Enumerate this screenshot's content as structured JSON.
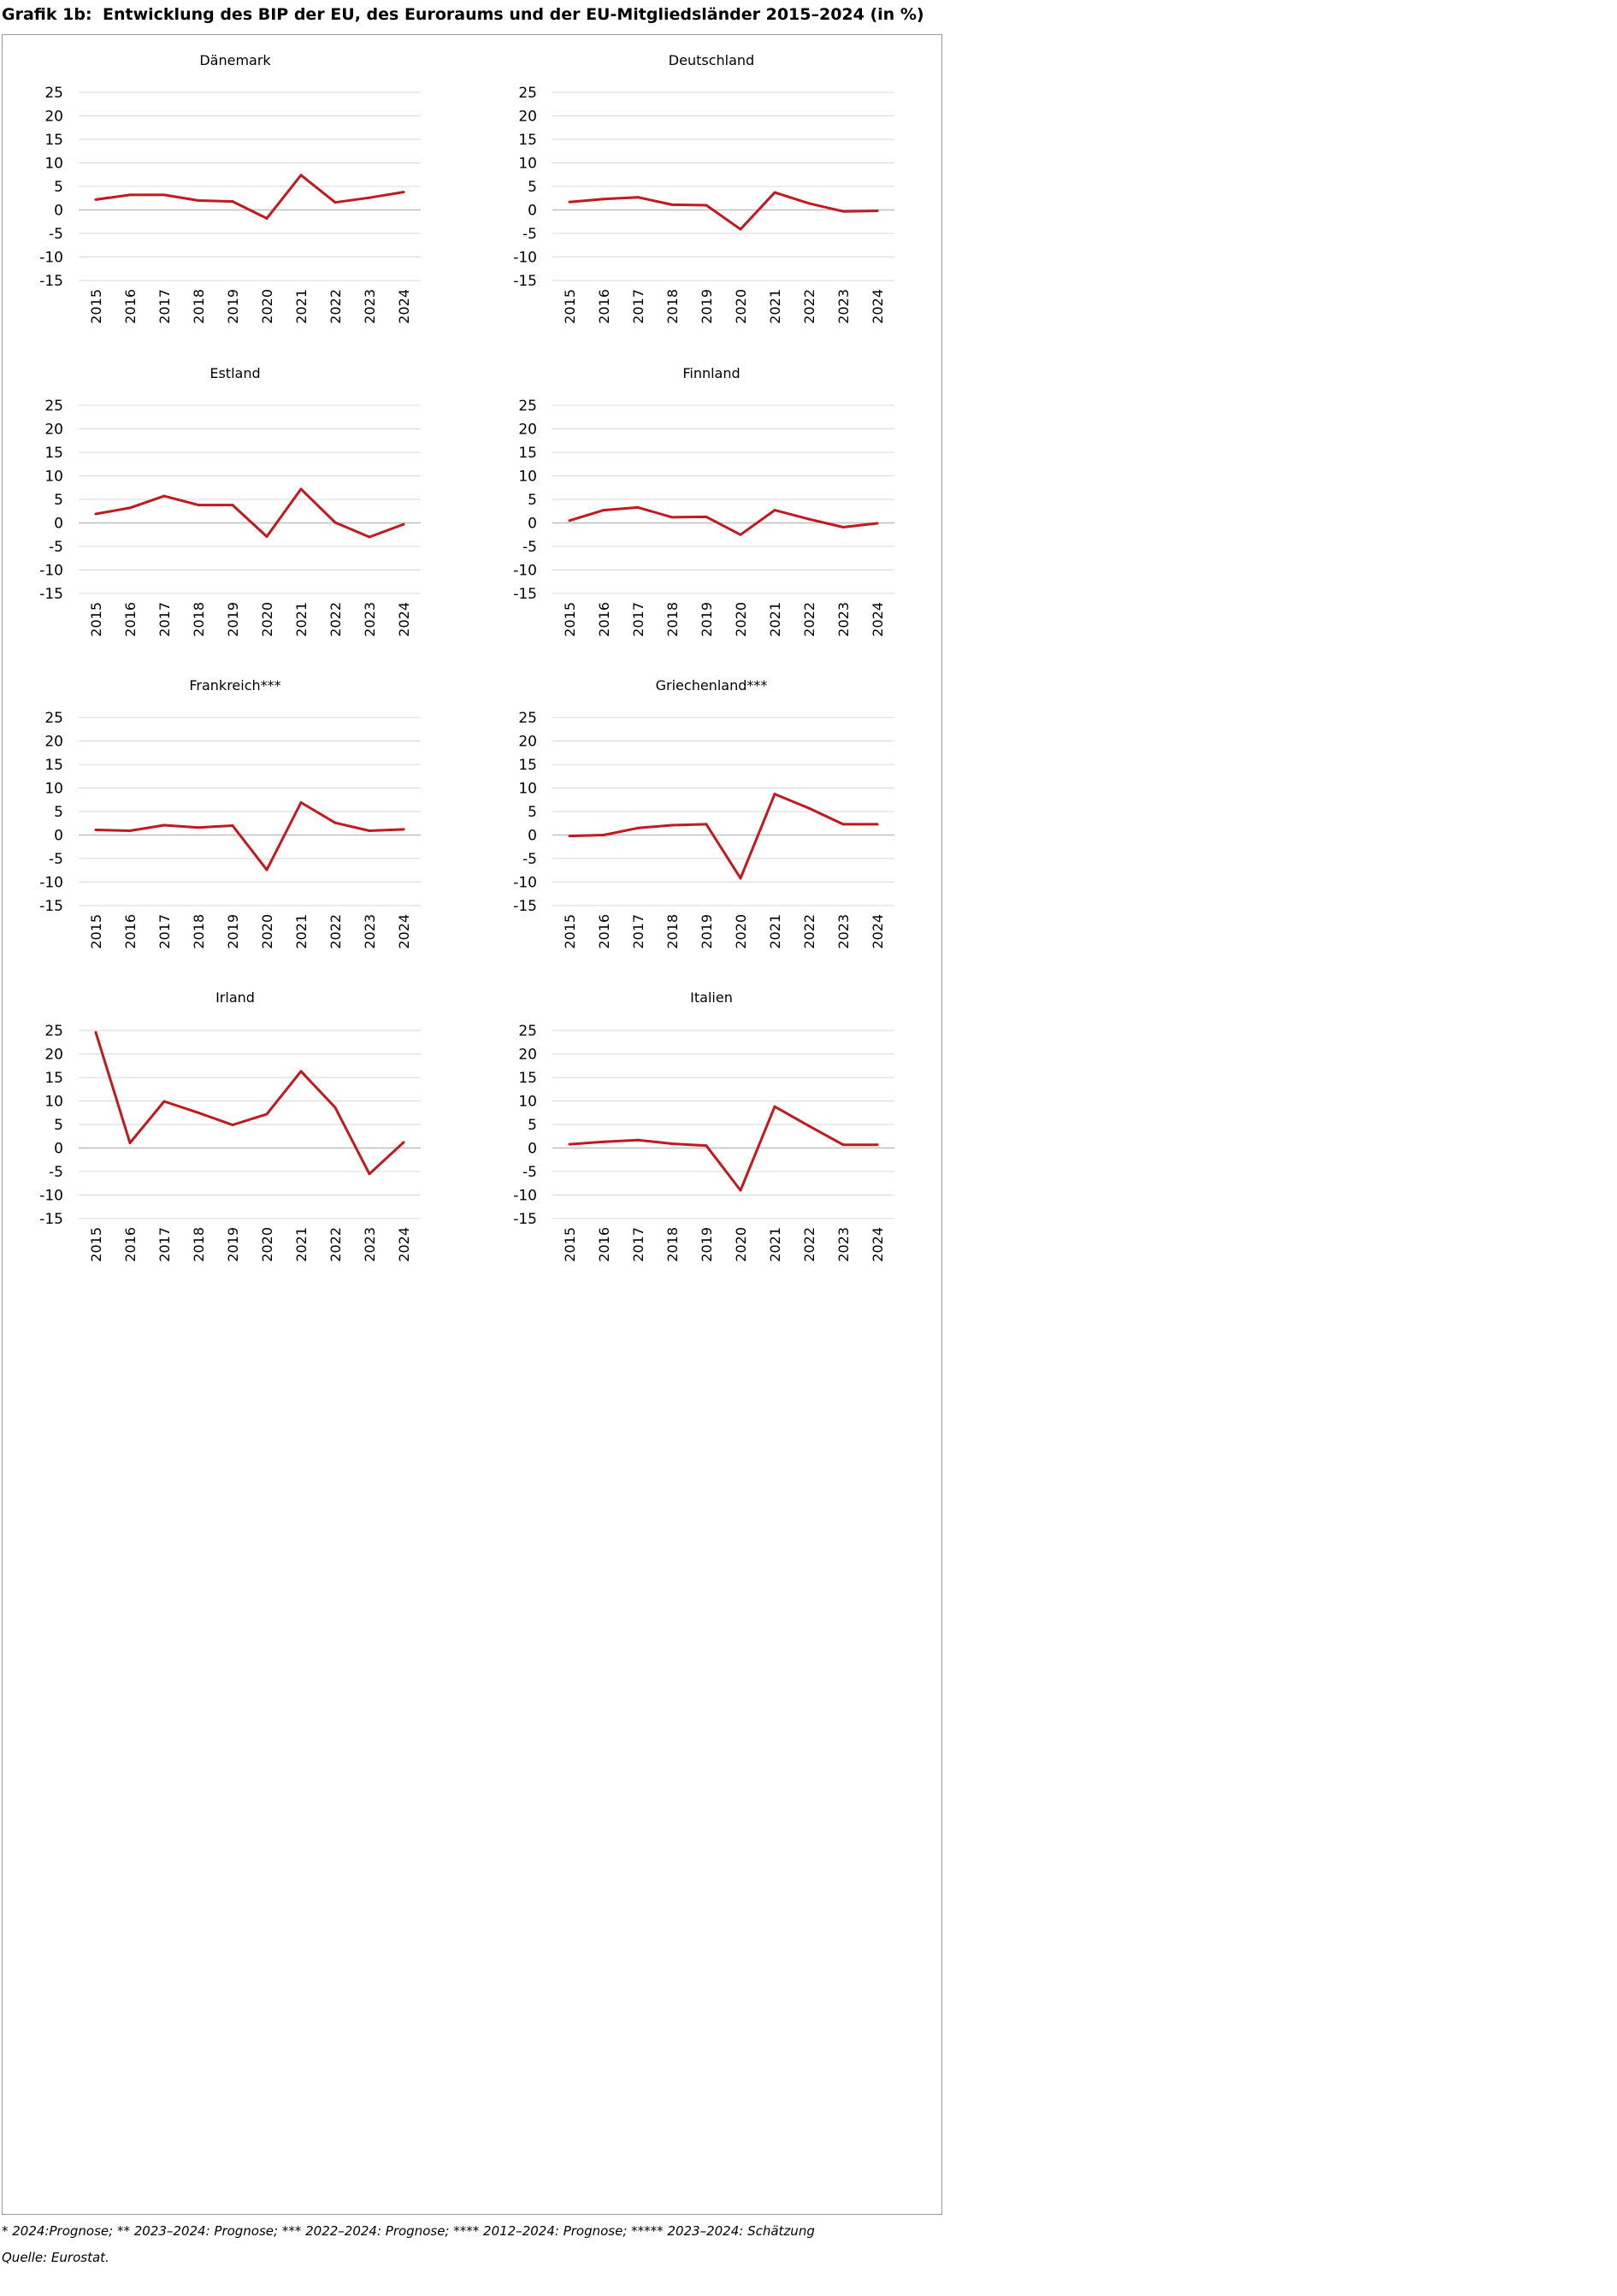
{
  "header": {
    "label": "Grafik 1b:",
    "title": "Entwicklung des BIP der EU, des Euroraums und der EU-Mitgliedsländer 2015–2024 (in %)"
  },
  "footer": {
    "footnote": "* 2024:Prognose; ** 2023–2024: Prognose; *** 2022–2024: Prognose; **** 2012–2024: Prognose; ***** 2023–2024: Schätzung",
    "source": "Quelle: Eurostat."
  },
  "colors": {
    "line": "#c0191f",
    "grid": "#d9d9d9",
    "zero": "#bfbfbf"
  },
  "chart_data": [
    {
      "type": "line",
      "title": "Dänemark",
      "categories": [
        "2015",
        "2016",
        "2017",
        "2018",
        "2019",
        "2020",
        "2021",
        "2022",
        "2023",
        "2024"
      ],
      "yticks": [
        25,
        20,
        15,
        10,
        5,
        0,
        -5,
        -10,
        -15
      ],
      "ylim": [
        -15,
        25
      ],
      "grid": true,
      "values": [
        2.2,
        3.2,
        3.2,
        2.0,
        1.8,
        -1.8,
        7.4,
        1.6,
        2.6,
        3.8
      ]
    },
    {
      "type": "line",
      "title": "Deutschland",
      "categories": [
        "2015",
        "2016",
        "2017",
        "2018",
        "2019",
        "2020",
        "2021",
        "2022",
        "2023",
        "2024"
      ],
      "yticks": [
        25,
        20,
        15,
        10,
        5,
        0,
        -5,
        -10,
        -15
      ],
      "ylim": [
        -15,
        25
      ],
      "grid": true,
      "values": [
        1.7,
        2.3,
        2.7,
        1.1,
        1.0,
        -4.1,
        3.7,
        1.4,
        -0.3,
        -0.2
      ]
    },
    {
      "type": "line",
      "title": "Estland",
      "categories": [
        "2015",
        "2016",
        "2017",
        "2018",
        "2019",
        "2020",
        "2021",
        "2022",
        "2023",
        "2024"
      ],
      "yticks": [
        25,
        20,
        15,
        10,
        5,
        0,
        -5,
        -10,
        -15
      ],
      "ylim": [
        -15,
        25
      ],
      "grid": true,
      "values": [
        1.9,
        3.2,
        5.7,
        3.8,
        3.8,
        -2.9,
        7.2,
        0.1,
        -3.0,
        -0.3
      ]
    },
    {
      "type": "line",
      "title": "Finnland",
      "categories": [
        "2015",
        "2016",
        "2017",
        "2018",
        "2019",
        "2020",
        "2021",
        "2022",
        "2023",
        "2024"
      ],
      "yticks": [
        25,
        20,
        15,
        10,
        5,
        0,
        -5,
        -10,
        -15
      ],
      "ylim": [
        -15,
        25
      ],
      "grid": true,
      "values": [
        0.5,
        2.7,
        3.3,
        1.2,
        1.3,
        -2.5,
        2.7,
        0.8,
        -0.9,
        -0.1
      ]
    },
    {
      "type": "line",
      "title": "Frankreich***",
      "categories": [
        "2015",
        "2016",
        "2017",
        "2018",
        "2019",
        "2020",
        "2021",
        "2022",
        "2023",
        "2024"
      ],
      "yticks": [
        25,
        20,
        15,
        10,
        5,
        0,
        -5,
        -10,
        -15
      ],
      "ylim": [
        -15,
        25
      ],
      "grid": true,
      "values": [
        1.1,
        0.9,
        2.1,
        1.6,
        2.0,
        -7.4,
        6.9,
        2.6,
        0.9,
        1.2
      ]
    },
    {
      "type": "line",
      "title": "Griechenland***",
      "categories": [
        "2015",
        "2016",
        "2017",
        "2018",
        "2019",
        "2020",
        "2021",
        "2022",
        "2023",
        "2024"
      ],
      "yticks": [
        25,
        20,
        15,
        10,
        5,
        0,
        -5,
        -10,
        -15
      ],
      "ylim": [
        -15,
        25
      ],
      "grid": true,
      "values": [
        -0.2,
        -0.0,
        1.5,
        2.1,
        2.3,
        -9.2,
        8.7,
        5.7,
        2.3,
        2.3
      ]
    },
    {
      "type": "line",
      "title": "Irland",
      "categories": [
        "2015",
        "2016",
        "2017",
        "2018",
        "2019",
        "2020",
        "2021",
        "2022",
        "2023",
        "2024"
      ],
      "yticks": [
        25,
        20,
        15,
        10,
        5,
        0,
        -5,
        -10,
        -15
      ],
      "ylim": [
        -15,
        25
      ],
      "grid": true,
      "values": [
        24.6,
        1.1,
        9.9,
        7.5,
        4.9,
        7.2,
        16.3,
        8.6,
        -5.5,
        1.2
      ]
    },
    {
      "type": "line",
      "title": "Italien",
      "categories": [
        "2015",
        "2016",
        "2017",
        "2018",
        "2019",
        "2020",
        "2021",
        "2022",
        "2023",
        "2024"
      ],
      "yticks": [
        25,
        20,
        15,
        10,
        5,
        0,
        -5,
        -10,
        -15
      ],
      "ylim": [
        -15,
        25
      ],
      "grid": true,
      "values": [
        0.8,
        1.3,
        1.7,
        0.9,
        0.5,
        -9.0,
        8.8,
        4.7,
        0.7,
        0.7
      ]
    }
  ]
}
